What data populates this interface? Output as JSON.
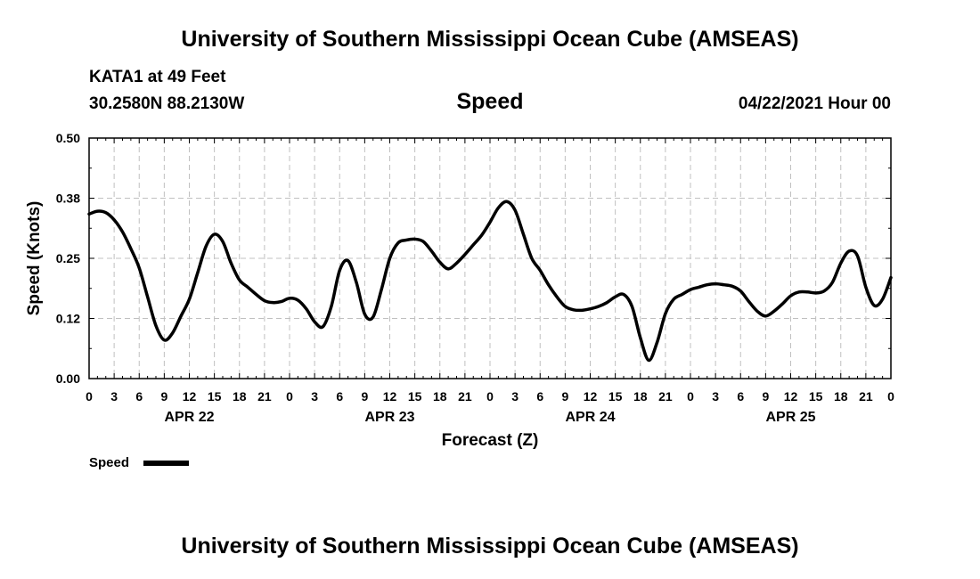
{
  "header": {
    "title": "University of Southern Mississippi Ocean Cube (AMSEAS)",
    "station": "KATA1 at 49 Feet",
    "coords": "30.2580N  88.2130W",
    "subtitle": "Speed",
    "datetime": "04/22/2021 Hour 00"
  },
  "footer": {
    "title": "University of Southern Mississippi Ocean Cube (AMSEAS)"
  },
  "colors": {
    "line": "#000000",
    "grid": "#c0c0c0"
  },
  "chart_data": {
    "type": "line",
    "title": "Speed",
    "xlabel": "Forecast (Z)",
    "ylabel": "Speed (Knots)",
    "units": "hours since 04/22/2021 00Z",
    "xlim": [
      0,
      96
    ],
    "ylim": [
      0,
      0.5
    ],
    "grid": true,
    "y_ticks": [
      "0.00",
      "0.12",
      "0.25",
      "0.38",
      "0.50"
    ],
    "x_ticks": [
      "0",
      "3",
      "6",
      "9",
      "12",
      "15",
      "18",
      "21",
      "0",
      "3",
      "6",
      "9",
      "12",
      "15",
      "18",
      "21",
      "0",
      "3",
      "6",
      "9",
      "12",
      "15",
      "18",
      "21",
      "0",
      "3",
      "6",
      "9",
      "12",
      "15",
      "18",
      "21",
      "0"
    ],
    "day_labels": [
      {
        "label": "APR 22",
        "hour": 12
      },
      {
        "label": "APR 23",
        "hour": 36
      },
      {
        "label": "APR 24",
        "hour": 60
      },
      {
        "label": "APR 25",
        "hour": 84
      }
    ],
    "legend": [
      {
        "name": "Speed"
      }
    ],
    "series": [
      {
        "name": "Speed",
        "x": [
          0,
          1,
          2,
          3,
          4,
          5,
          6,
          7,
          8,
          9,
          10,
          11,
          12,
          13,
          14,
          15,
          16,
          17,
          18,
          19,
          20,
          21,
          22,
          23,
          24,
          25,
          26,
          27,
          28,
          29,
          30,
          31,
          32,
          33,
          34,
          35,
          36,
          37,
          38,
          39,
          40,
          41,
          42,
          43,
          44,
          45,
          46,
          47,
          48,
          49,
          50,
          51,
          52,
          53,
          54,
          55,
          56,
          57,
          58,
          59,
          60,
          61,
          62,
          63,
          64,
          65,
          66,
          67,
          68,
          69,
          70,
          71,
          72,
          73,
          74,
          75,
          76,
          77,
          78,
          79,
          80,
          81,
          82,
          83,
          84,
          85,
          86,
          87,
          88,
          89,
          90,
          91,
          92,
          93,
          94,
          95,
          96
        ],
        "values": [
          0.342,
          0.348,
          0.345,
          0.33,
          0.305,
          0.27,
          0.23,
          0.17,
          0.11,
          0.08,
          0.095,
          0.13,
          0.165,
          0.22,
          0.275,
          0.3,
          0.285,
          0.24,
          0.205,
          0.19,
          0.175,
          0.162,
          0.158,
          0.16,
          0.167,
          0.163,
          0.145,
          0.118,
          0.108,
          0.15,
          0.225,
          0.245,
          0.2,
          0.134,
          0.128,
          0.185,
          0.25,
          0.282,
          0.288,
          0.29,
          0.285,
          0.265,
          0.242,
          0.228,
          0.24,
          0.258,
          0.278,
          0.298,
          0.325,
          0.355,
          0.368,
          0.35,
          0.3,
          0.25,
          0.225,
          0.195,
          0.17,
          0.15,
          0.143,
          0.142,
          0.145,
          0.15,
          0.158,
          0.17,
          0.175,
          0.15,
          0.085,
          0.038,
          0.075,
          0.135,
          0.165,
          0.175,
          0.185,
          0.19,
          0.195,
          0.197,
          0.195,
          0.192,
          0.182,
          0.16,
          0.14,
          0.13,
          0.14,
          0.155,
          0.172,
          0.18,
          0.18,
          0.178,
          0.182,
          0.2,
          0.24,
          0.265,
          0.255,
          0.19,
          0.152,
          0.165,
          0.21
        ]
      }
    ]
  }
}
